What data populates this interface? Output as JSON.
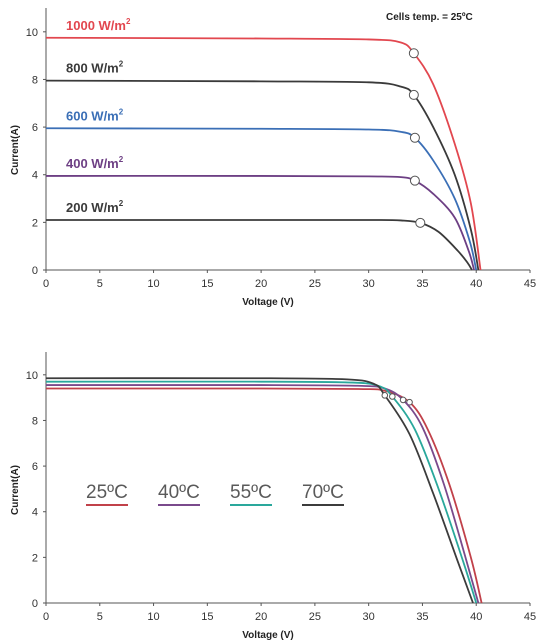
{
  "chart_data": [
    {
      "type": "line",
      "title": "",
      "annotation": "Cells temp. = 25ºC",
      "xlabel": "Voltage  (V)",
      "ylabel": "Current(A)",
      "xlim": [
        0,
        45
      ],
      "ylim": [
        0,
        11
      ],
      "xticks": [
        "0",
        "5",
        "10",
        "15",
        "20",
        "25",
        "30",
        "35",
        "40",
        "45"
      ],
      "yticks": [
        "0",
        "2",
        "4",
        "6",
        "8",
        "10"
      ],
      "grid": false,
      "series": [
        {
          "label": "1000 W/m",
          "label_sup": "2",
          "color": "#e2474f",
          "isc": 9.75,
          "voc": 40.4,
          "points": [
            [
              0,
              9.75
            ],
            [
              20,
              9.72
            ],
            [
              30,
              9.68
            ],
            [
              33,
              9.55
            ],
            [
              34.2,
              9.1
            ],
            [
              36,
              7.8
            ],
            [
              38,
              5.3
            ],
            [
              39.5,
              2.8
            ],
            [
              40.4,
              0
            ]
          ],
          "mpp": [
            34.2,
            9.1
          ]
        },
        {
          "label": "800 W/m",
          "label_sup": "2",
          "color": "#3a3a3a",
          "isc": 7.95,
          "voc": 40.2,
          "points": [
            [
              0,
              7.95
            ],
            [
              20,
              7.92
            ],
            [
              30,
              7.88
            ],
            [
              33,
              7.7
            ],
            [
              34.2,
              7.35
            ],
            [
              36,
              6.0
            ],
            [
              38,
              4.0
            ],
            [
              39.5,
              1.7
            ],
            [
              40.2,
              0
            ]
          ],
          "mpp": [
            34.2,
            7.35
          ]
        },
        {
          "label": "600 W/m",
          "label_sup": "2",
          "color": "#3b6fb6",
          "isc": 5.95,
          "voc": 40.0,
          "points": [
            [
              0,
              5.95
            ],
            [
              20,
              5.93
            ],
            [
              30,
              5.9
            ],
            [
              33,
              5.8
            ],
            [
              34.3,
              5.55
            ],
            [
              36,
              4.6
            ],
            [
              38,
              3.0
            ],
            [
              39.4,
              1.2
            ],
            [
              40.0,
              0
            ]
          ],
          "mpp": [
            34.3,
            5.55
          ]
        },
        {
          "label": "400 W/m",
          "label_sup": "2",
          "color": "#6d3f84",
          "isc": 3.95,
          "voc": 39.8,
          "points": [
            [
              0,
              3.95
            ],
            [
              20,
              3.95
            ],
            [
              30,
              3.93
            ],
            [
              33,
              3.9
            ],
            [
              34.3,
              3.75
            ],
            [
              36,
              3.2
            ],
            [
              38,
              2.2
            ],
            [
              39.3,
              0.8
            ],
            [
              39.8,
              0
            ]
          ],
          "mpp": [
            34.3,
            3.75
          ]
        },
        {
          "label": "200 W/m",
          "label_sup": "2",
          "color": "#3a3a3a",
          "isc": 2.1,
          "voc": 39.6,
          "points": [
            [
              0,
              2.1
            ],
            [
              20,
              2.1
            ],
            [
              30,
              2.1
            ],
            [
              33,
              2.08
            ],
            [
              34.8,
              1.98
            ],
            [
              36.5,
              1.6
            ],
            [
              38.3,
              0.8
            ],
            [
              39.2,
              0.3
            ],
            [
              39.6,
              0
            ]
          ],
          "mpp": [
            34.8,
            1.98
          ]
        }
      ]
    },
    {
      "type": "line",
      "title": "",
      "xlabel": "Voltage  (V)",
      "ylabel": "Current(A)",
      "xlim": [
        0,
        45
      ],
      "ylim": [
        0,
        11
      ],
      "xticks": [
        "0",
        "5",
        "10",
        "15",
        "20",
        "25",
        "30",
        "35",
        "40",
        "45"
      ],
      "yticks": [
        "0",
        "2",
        "4",
        "6",
        "8",
        "10"
      ],
      "grid": false,
      "legend": "center-left",
      "series": [
        {
          "name": "25ºC",
          "color": "#c1414a",
          "points": [
            [
              0,
              9.4
            ],
            [
              20,
              9.4
            ],
            [
              29,
              9.38
            ],
            [
              31.5,
              9.3
            ],
            [
              33.8,
              8.8
            ],
            [
              35.5,
              7.6
            ],
            [
              37.5,
              5.2
            ],
            [
              39.5,
              2.0
            ],
            [
              40.5,
              0
            ]
          ],
          "mpp": [
            33.8,
            8.8
          ]
        },
        {
          "name": "40ºC",
          "color": "#7a4a8c",
          "points": [
            [
              0,
              9.55
            ],
            [
              20,
              9.55
            ],
            [
              29,
              9.52
            ],
            [
              31.5,
              9.4
            ],
            [
              33.2,
              8.9
            ],
            [
              35,
              7.7
            ],
            [
              37,
              5.2
            ],
            [
              39,
              2.0
            ],
            [
              40.2,
              0
            ]
          ],
          "mpp": [
            33.2,
            8.9
          ]
        },
        {
          "name": "55ºC",
          "color": "#2aa89c",
          "points": [
            [
              0,
              9.7
            ],
            [
              20,
              9.7
            ],
            [
              28.5,
              9.66
            ],
            [
              31,
              9.5
            ],
            [
              32.2,
              9.05
            ],
            [
              34.3,
              7.6
            ],
            [
              36.5,
              5.0
            ],
            [
              38.8,
              1.8
            ],
            [
              40.0,
              0
            ]
          ],
          "mpp": [
            32.2,
            9.05
          ]
        },
        {
          "name": "70ºC",
          "color": "#3c3c3c",
          "points": [
            [
              0,
              9.85
            ],
            [
              20,
              9.85
            ],
            [
              28,
              9.8
            ],
            [
              30.5,
              9.6
            ],
            [
              31.5,
              9.1
            ],
            [
              33.8,
              7.4
            ],
            [
              36,
              4.8
            ],
            [
              38.3,
              1.8
            ],
            [
              39.7,
              0
            ]
          ],
          "mpp": [
            31.5,
            9.1
          ]
        }
      ]
    }
  ]
}
